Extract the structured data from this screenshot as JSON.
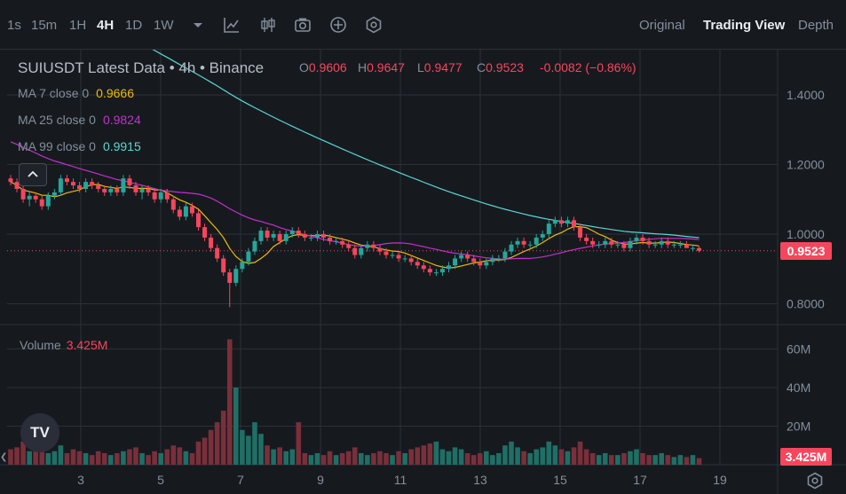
{
  "toolbar": {
    "timeframes": [
      "1s",
      "15m",
      "1H",
      "4H",
      "1D",
      "1W"
    ],
    "active_timeframe": "4H",
    "icons": [
      "dropdown-icon",
      "line-tool-icon",
      "candle-type-icon",
      "camera-icon",
      "plus-circle-icon",
      "indicator-icon"
    ],
    "views": [
      "Original",
      "Trading View",
      "Depth"
    ],
    "active_view": "Trading View"
  },
  "legend": {
    "title": "SUIUSDT Latest Data • 4h • Binance",
    "ohlc": [
      {
        "k": "O",
        "v": "0.9606"
      },
      {
        "k": "H",
        "v": "0.9647"
      },
      {
        "k": "L",
        "v": "0.9477"
      },
      {
        "k": "C",
        "v": "0.9523"
      }
    ],
    "change": "-0.0082 (−0.86%)",
    "mas": [
      {
        "label": "MA 7 close 0",
        "value": "0.9666",
        "color": "#f0b90b"
      },
      {
        "label": "MA 25 close 0",
        "value": "0.9824",
        "color": "#c42fd1"
      },
      {
        "label": "MA 99 close 0",
        "value": "0.9915",
        "color": "#5ad6d6"
      }
    ],
    "volume_label": "Volume",
    "volume_value": "3.425M"
  },
  "price_tag": "0.9523",
  "volume_tag": "3.425M",
  "logo_text": "TV",
  "colors": {
    "up": "#0ecb81",
    "up_body": "#26a69a",
    "down": "#f6465d",
    "grid": "#2b3139",
    "text": "#848e9c"
  },
  "chart_data": {
    "type": "candlestick",
    "x_ticks": [
      "3",
      "5",
      "7",
      "9",
      "11",
      "13",
      "15",
      "17",
      "19"
    ],
    "y_ticks": [
      "1.4000",
      "1.2000",
      "1.0000",
      "0.8000"
    ],
    "y_range": [
      0.74,
      1.53
    ],
    "volume_ticks": [
      "60M",
      "40M",
      "20M"
    ],
    "volume_range": [
      0,
      68
    ],
    "last_price": 0.9523,
    "candles": [
      [
        1.16,
        1.17,
        1.14,
        1.15,
        8
      ],
      [
        1.15,
        1.16,
        1.12,
        1.13,
        9
      ],
      [
        1.13,
        1.14,
        1.09,
        1.1,
        12
      ],
      [
        1.1,
        1.12,
        1.08,
        1.11,
        7
      ],
      [
        1.11,
        1.12,
        1.09,
        1.1,
        8
      ],
      [
        1.1,
        1.11,
        1.07,
        1.08,
        9
      ],
      [
        1.08,
        1.12,
        1.07,
        1.11,
        6
      ],
      [
        1.11,
        1.13,
        1.1,
        1.12,
        7
      ],
      [
        1.12,
        1.17,
        1.11,
        1.16,
        10
      ],
      [
        1.16,
        1.17,
        1.14,
        1.15,
        6
      ],
      [
        1.15,
        1.16,
        1.13,
        1.14,
        8
      ],
      [
        1.14,
        1.15,
        1.12,
        1.13,
        7
      ],
      [
        1.13,
        1.16,
        1.12,
        1.15,
        6
      ],
      [
        1.15,
        1.16,
        1.13,
        1.14,
        5
      ],
      [
        1.14,
        1.15,
        1.12,
        1.13,
        7
      ],
      [
        1.13,
        1.14,
        1.11,
        1.12,
        6
      ],
      [
        1.12,
        1.14,
        1.11,
        1.13,
        5
      ],
      [
        1.13,
        1.14,
        1.11,
        1.12,
        6
      ],
      [
        1.12,
        1.17,
        1.11,
        1.16,
        7
      ],
      [
        1.16,
        1.17,
        1.13,
        1.14,
        8
      ],
      [
        1.14,
        1.15,
        1.11,
        1.12,
        9
      ],
      [
        1.12,
        1.14,
        1.1,
        1.13,
        6
      ],
      [
        1.13,
        1.14,
        1.11,
        1.12,
        5
      ],
      [
        1.12,
        1.13,
        1.09,
        1.1,
        7
      ],
      [
        1.1,
        1.13,
        1.09,
        1.12,
        6
      ],
      [
        1.12,
        1.13,
        1.09,
        1.1,
        8
      ],
      [
        1.1,
        1.11,
        1.06,
        1.07,
        10
      ],
      [
        1.07,
        1.08,
        1.04,
        1.05,
        9
      ],
      [
        1.05,
        1.09,
        1.04,
        1.08,
        7
      ],
      [
        1.08,
        1.09,
        1.05,
        1.06,
        6
      ],
      [
        1.06,
        1.07,
        1.01,
        1.02,
        12
      ],
      [
        1.02,
        1.03,
        0.98,
        0.99,
        14
      ],
      [
        0.99,
        1.0,
        0.95,
        0.96,
        18
      ],
      [
        0.96,
        0.97,
        0.92,
        0.93,
        22
      ],
      [
        0.93,
        0.94,
        0.88,
        0.89,
        28
      ],
      [
        0.89,
        0.9,
        0.79,
        0.86,
        65
      ],
      [
        0.86,
        0.91,
        0.85,
        0.9,
        40
      ],
      [
        0.9,
        0.93,
        0.89,
        0.92,
        18
      ],
      [
        0.92,
        0.96,
        0.91,
        0.95,
        15
      ],
      [
        0.95,
        0.99,
        0.94,
        0.98,
        22
      ],
      [
        0.98,
        1.02,
        0.97,
        1.01,
        16
      ],
      [
        1.01,
        1.02,
        0.98,
        0.99,
        10
      ],
      [
        0.99,
        1.01,
        0.98,
        1.0,
        8
      ],
      [
        1.0,
        1.01,
        0.97,
        0.98,
        9
      ],
      [
        0.98,
        1.01,
        0.97,
        1.0,
        7
      ],
      [
        1.0,
        1.02,
        0.99,
        1.01,
        8
      ],
      [
        1.01,
        1.02,
        0.99,
        1.0,
        22
      ],
      [
        1.0,
        1.01,
        0.98,
        0.99,
        6
      ],
      [
        0.99,
        1.0,
        0.98,
        0.99,
        5
      ],
      [
        0.99,
        1.01,
        0.98,
        1.0,
        6
      ],
      [
        1.0,
        1.01,
        0.98,
        0.99,
        5
      ],
      [
        0.99,
        1.0,
        0.97,
        0.98,
        7
      ],
      [
        0.98,
        0.99,
        0.97,
        0.98,
        5
      ],
      [
        0.98,
        0.99,
        0.96,
        0.97,
        6
      ],
      [
        0.97,
        0.98,
        0.95,
        0.96,
        7
      ],
      [
        0.96,
        0.97,
        0.93,
        0.94,
        9
      ],
      [
        0.94,
        0.97,
        0.93,
        0.96,
        6
      ],
      [
        0.96,
        0.98,
        0.95,
        0.97,
        5
      ],
      [
        0.97,
        0.98,
        0.95,
        0.96,
        6
      ],
      [
        0.96,
        0.97,
        0.94,
        0.95,
        7
      ],
      [
        0.95,
        0.96,
        0.93,
        0.94,
        6
      ],
      [
        0.94,
        0.95,
        0.93,
        0.94,
        5
      ],
      [
        0.94,
        0.95,
        0.92,
        0.93,
        7
      ],
      [
        0.93,
        0.94,
        0.92,
        0.93,
        6
      ],
      [
        0.93,
        0.94,
        0.91,
        0.92,
        8
      ],
      [
        0.92,
        0.93,
        0.9,
        0.91,
        9
      ],
      [
        0.91,
        0.92,
        0.89,
        0.9,
        10
      ],
      [
        0.9,
        0.91,
        0.88,
        0.89,
        11
      ],
      [
        0.89,
        0.9,
        0.88,
        0.89,
        12
      ],
      [
        0.89,
        0.91,
        0.88,
        0.9,
        8
      ],
      [
        0.9,
        0.92,
        0.89,
        0.91,
        7
      ],
      [
        0.91,
        0.94,
        0.9,
        0.93,
        9
      ],
      [
        0.93,
        0.95,
        0.92,
        0.94,
        8
      ],
      [
        0.94,
        0.95,
        0.92,
        0.93,
        6
      ],
      [
        0.93,
        0.94,
        0.91,
        0.92,
        5
      ],
      [
        0.92,
        0.93,
        0.9,
        0.91,
        6
      ],
      [
        0.91,
        0.93,
        0.9,
        0.92,
        7
      ],
      [
        0.92,
        0.94,
        0.91,
        0.93,
        5
      ],
      [
        0.93,
        0.94,
        0.92,
        0.93,
        6
      ],
      [
        0.93,
        0.96,
        0.92,
        0.95,
        10
      ],
      [
        0.95,
        0.98,
        0.94,
        0.97,
        12
      ],
      [
        0.97,
        0.99,
        0.96,
        0.98,
        9
      ],
      [
        0.98,
        0.99,
        0.96,
        0.97,
        7
      ],
      [
        0.97,
        0.98,
        0.96,
        0.97,
        6
      ],
      [
        0.97,
        1.0,
        0.96,
        0.99,
        8
      ],
      [
        0.99,
        1.01,
        0.98,
        1.0,
        9
      ],
      [
        1.0,
        1.04,
        0.99,
        1.03,
        12
      ],
      [
        1.03,
        1.05,
        1.02,
        1.04,
        10
      ],
      [
        1.04,
        1.05,
        1.02,
        1.03,
        8
      ],
      [
        1.03,
        1.05,
        1.02,
        1.04,
        7
      ],
      [
        1.04,
        1.05,
        1.01,
        1.02,
        9
      ],
      [
        1.02,
        1.03,
        0.98,
        0.99,
        12
      ],
      [
        0.99,
        1.0,
        0.97,
        0.98,
        8
      ],
      [
        0.98,
        0.99,
        0.96,
        0.97,
        6
      ],
      [
        0.97,
        0.98,
        0.96,
        0.97,
        5
      ],
      [
        0.97,
        0.99,
        0.96,
        0.98,
        6
      ],
      [
        0.98,
        0.99,
        0.96,
        0.97,
        5
      ],
      [
        0.97,
        0.98,
        0.96,
        0.97,
        5
      ],
      [
        0.97,
        0.98,
        0.95,
        0.96,
        6
      ],
      [
        0.96,
        0.99,
        0.95,
        0.98,
        7
      ],
      [
        0.98,
        1.0,
        0.97,
        0.99,
        8
      ],
      [
        0.99,
        1.0,
        0.97,
        0.98,
        6
      ],
      [
        0.98,
        0.99,
        0.96,
        0.97,
        5
      ],
      [
        0.97,
        0.98,
        0.96,
        0.97,
        5
      ],
      [
        0.97,
        0.99,
        0.96,
        0.98,
        6
      ],
      [
        0.98,
        0.99,
        0.96,
        0.97,
        5
      ],
      [
        0.97,
        0.98,
        0.96,
        0.97,
        4
      ],
      [
        0.97,
        0.98,
        0.96,
        0.97,
        5
      ],
      [
        0.97,
        0.98,
        0.96,
        0.96,
        4
      ],
      [
        0.96,
        0.97,
        0.95,
        0.96,
        5
      ],
      [
        0.96,
        0.9647,
        0.9477,
        0.9523,
        3.425
      ]
    ],
    "ma_series": [
      {
        "name": "MA 7 close 0",
        "color": "#f0b90b"
      },
      {
        "name": "MA 25 close 0",
        "color": "#c42fd1"
      },
      {
        "name": "MA 99 close 0",
        "color": "#5ad6d6",
        "start": 1.5
      }
    ]
  }
}
